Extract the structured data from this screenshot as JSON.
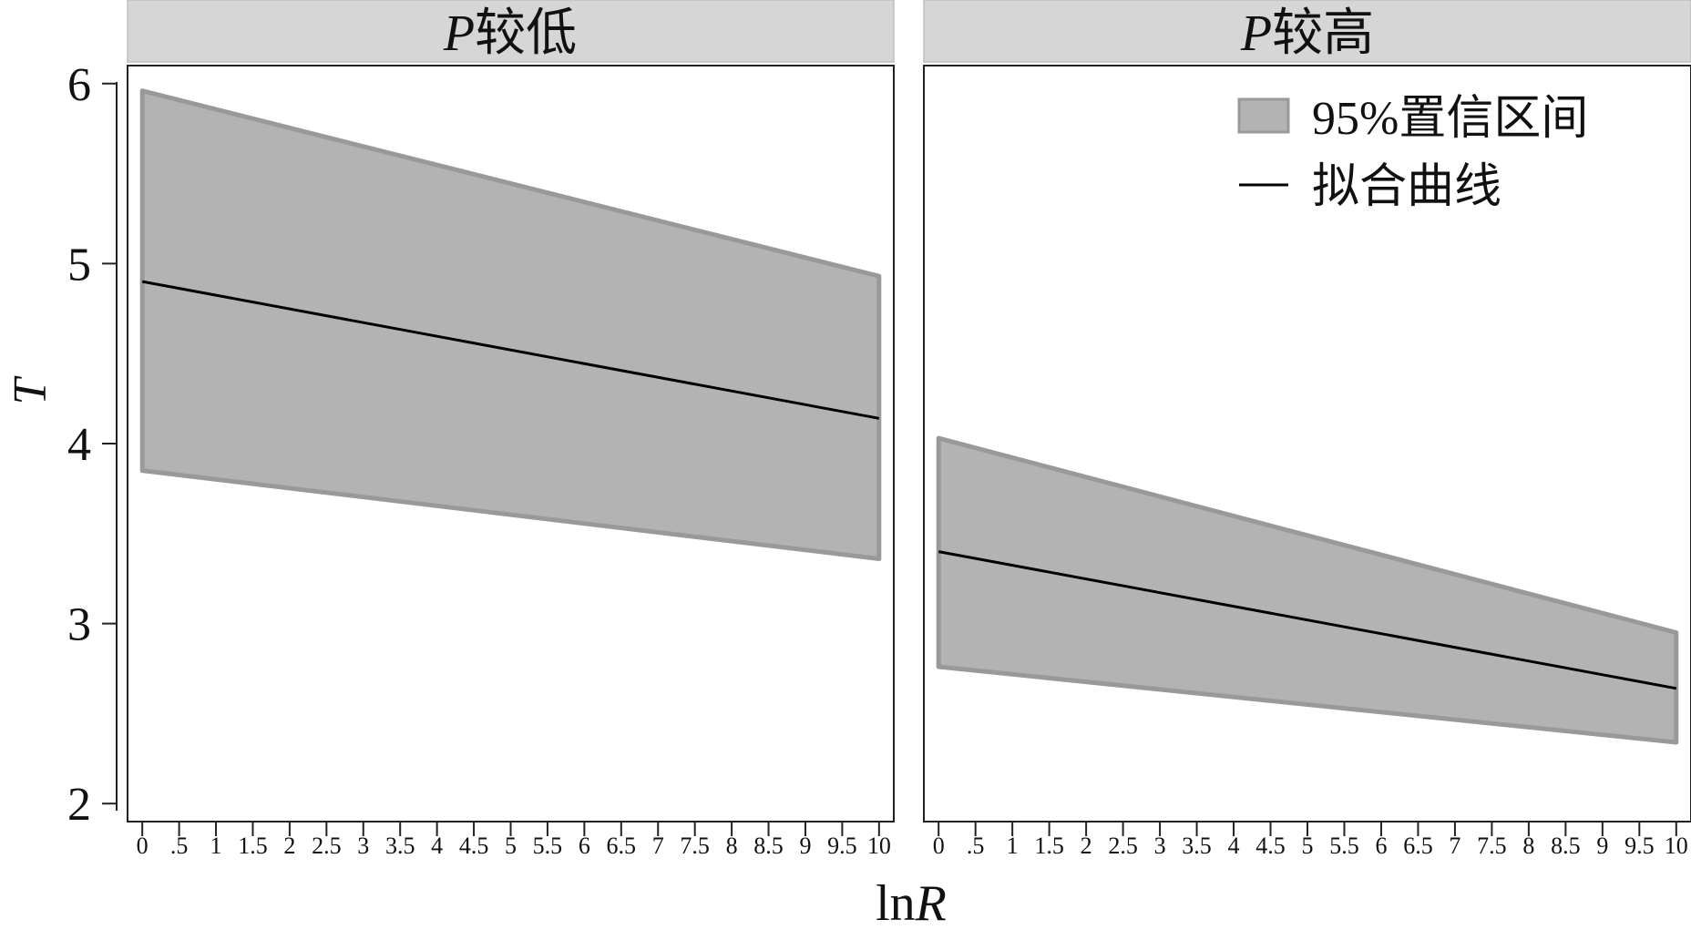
{
  "chart_data": {
    "type": "area",
    "y_axis_label": "T",
    "x_axis_label": {
      "prefix": "ln",
      "italic": "R"
    },
    "x_tick_labels": [
      "0",
      ".5",
      "1",
      "1.5",
      "2",
      "2.5",
      "3",
      "3.5",
      "4",
      "4.5",
      "5",
      "5.5",
      "6",
      "6.5",
      "7",
      "7.5",
      "8",
      "8.5",
      "9",
      "9.5",
      "10"
    ],
    "x_ticks": [
      0,
      0.5,
      1,
      1.5,
      2,
      2.5,
      3,
      3.5,
      4,
      4.5,
      5,
      5.5,
      6,
      6.5,
      7,
      7.5,
      8,
      8.5,
      9,
      9.5,
      10
    ],
    "y_ticks": [
      2,
      3,
      4,
      5,
      6
    ],
    "xlim": [
      -0.2,
      10.2
    ],
    "ylim": [
      1.9,
      6.1
    ],
    "grid": false,
    "legend": {
      "placement": "top-right of second panel",
      "entries": [
        {
          "kind": "band",
          "label": "95%置信区间"
        },
        {
          "kind": "line",
          "label": "拟合曲线"
        }
      ]
    },
    "colors": {
      "band_fill": "#b3b3b3",
      "band_edge": "#999999",
      "fit_line": "#000000",
      "strip": "#d6d6d6"
    },
    "panels": [
      {
        "title_italic": "P",
        "title_rest": "较低",
        "x": [
          0,
          10
        ],
        "fit": [
          4.9,
          4.14
        ],
        "ci_lower": [
          3.85,
          3.36
        ],
        "ci_upper": [
          5.96,
          4.93
        ]
      },
      {
        "title_italic": "P",
        "title_rest": "较高",
        "x": [
          0,
          10
        ],
        "fit": [
          3.4,
          2.64
        ],
        "ci_lower": [
          2.76,
          2.34
        ],
        "ci_upper": [
          4.03,
          2.95
        ]
      }
    ]
  }
}
